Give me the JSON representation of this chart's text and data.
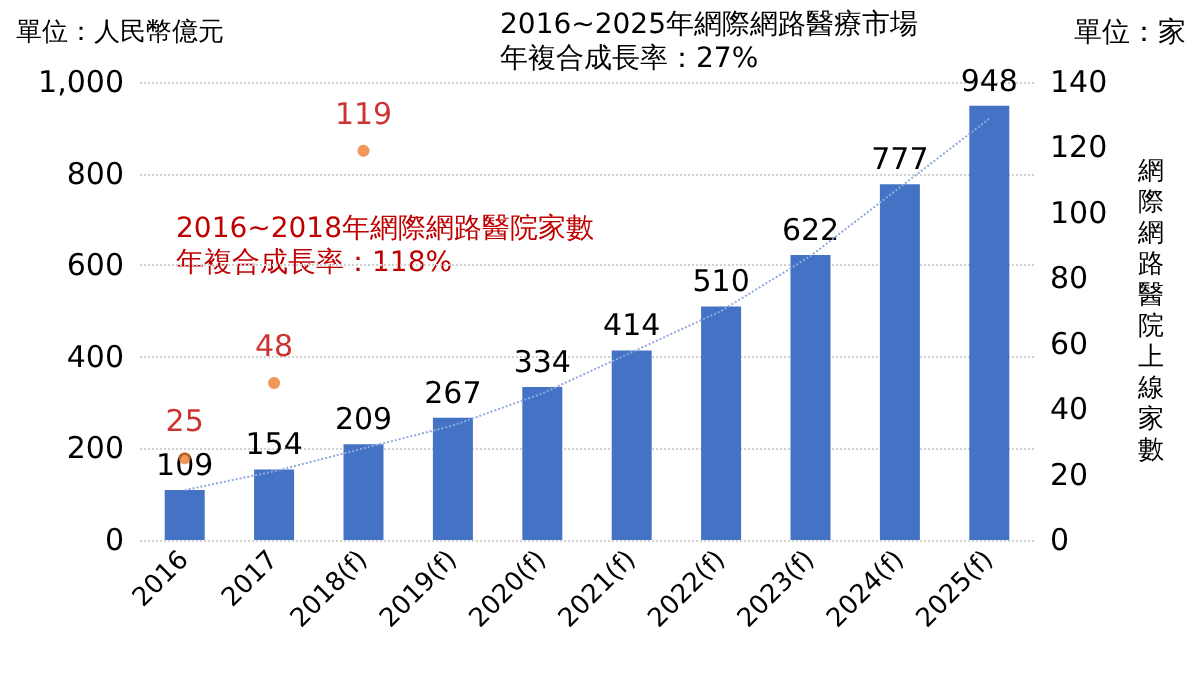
{
  "chart_data": {
    "type": "bar",
    "categories": [
      "2016",
      "2017",
      "2018(f)",
      "2019(f)",
      "2020(f)",
      "2021(f)",
      "2022(f)",
      "2023(f)",
      "2024(f)",
      "2025(f)"
    ],
    "series": [
      {
        "color": "#4472c4",
        "values": [
          109,
          154,
          209,
          267,
          334,
          414,
          510,
          622,
          777,
          948
        ],
        "data_labels": true
      },
      {
        "type": "line",
        "color": "#8faadc",
        "line_style": "dotted",
        "marker": "none",
        "values": [
          109,
          150,
          200,
          250,
          320,
          410,
          500,
          620,
          770,
          920
        ]
      },
      {
        "type": "scatter",
        "axis": "y2",
        "color": "#ed7d31",
        "marker": "circle",
        "values": [
          25,
          48,
          119,
          null,
          null,
          null,
          null,
          null,
          null,
          null
        ],
        "data_labels": true
      }
    ],
    "ylabel": "單位：人民幣億元",
    "y2label": "網際網路醫院上線家數",
    "ylim": [
      0,
      1000
    ],
    "yticks": [
      0,
      200,
      400,
      600,
      800,
      {
        "value": 1000,
        "label": "1,000"
      }
    ],
    "y2lim": [
      0,
      140
    ],
    "y2ticks": [
      0,
      20,
      40,
      60,
      80,
      100,
      120,
      140
    ],
    "grid": "y",
    "annotations": [
      "2016~2025年網際網路醫療市場",
      "年複合成長率：27%",
      "2016~2018年網際網路醫院家數",
      "年複合成長率：118%",
      "單位：家"
    ]
  }
}
